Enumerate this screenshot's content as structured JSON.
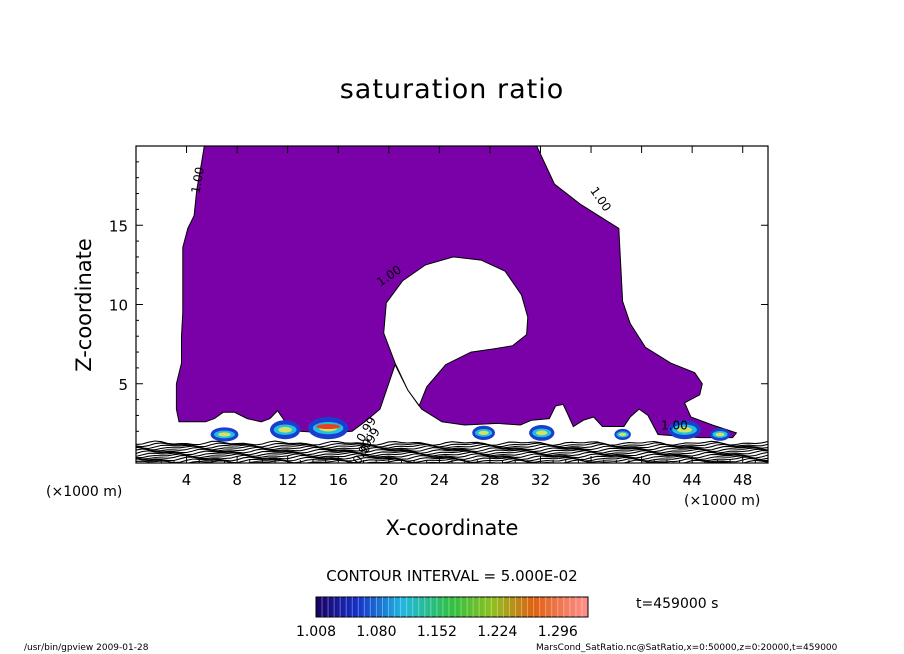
{
  "chart_data": {
    "type": "contour",
    "title": "saturation ratio",
    "xlabel": "X-coordinate",
    "ylabel": "Z-coordinate",
    "x_unit_label": "(×1000 m)",
    "xlim": [
      0,
      50
    ],
    "ylim": [
      0,
      20
    ],
    "x_ticks": [
      4,
      8,
      12,
      16,
      20,
      24,
      28,
      32,
      36,
      40,
      44,
      48
    ],
    "y_ticks": [
      5,
      10,
      15
    ],
    "contour_interval_text": "CONTOUR INTERVAL = 5.000E-02",
    "contour_labels": [
      {
        "text": "1.00",
        "x": 5.2,
        "y": 17.8
      },
      {
        "text": "1.00",
        "x": 20.2,
        "y": 11.6
      },
      {
        "text": "1.00",
        "x": 36.5,
        "y": 16.5
      },
      {
        "text": "0.99",
        "x": 18.2,
        "y": 0.6
      },
      {
        "text": "0.99",
        "x": 18.8,
        "y": 1.3
      },
      {
        "text": "0.99",
        "x": 18.5,
        "y": 2.0
      },
      {
        "text": "1.00",
        "x": 42.6,
        "y": 2.1
      }
    ],
    "colorbar": {
      "tick_labels": [
        "1.008",
        "1.080",
        "1.152",
        "1.224",
        "1.296"
      ],
      "range": [
        1.008,
        1.332
      ]
    },
    "time_label": "t=459000 s",
    "fill_color": "#7a00a8"
  },
  "footer": {
    "left": "/usr/bin/gpview   2009-01-28",
    "right": "MarsCond_SatRatio.nc@SatRatio,x=0:50000,z=0:20000,t=459000"
  }
}
